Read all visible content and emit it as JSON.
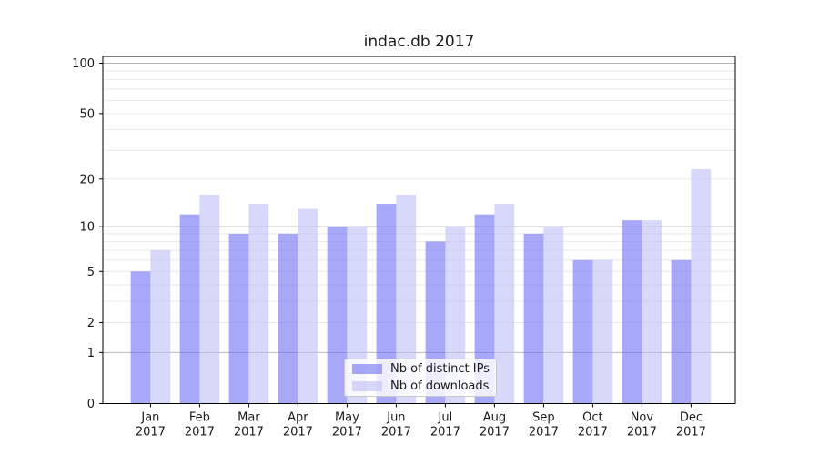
{
  "chart_data": {
    "type": "bar",
    "title": "indac.db 2017",
    "categories": [
      "Jan",
      "Feb",
      "Mar",
      "Apr",
      "May",
      "Jun",
      "Jul",
      "Aug",
      "Sep",
      "Oct",
      "Nov",
      "Dec"
    ],
    "x_tick_second_line": "2017",
    "series": [
      {
        "name": "Nb of distinct IPs",
        "color": "rgba(110,110,245,0.6)",
        "values": [
          5,
          12,
          9,
          9,
          10,
          14,
          8,
          12,
          9,
          6,
          11,
          6
        ]
      },
      {
        "name": "Nb of downloads",
        "color": "rgba(190,190,247,0.6)",
        "values": [
          7,
          16,
          14,
          13,
          10,
          16,
          10,
          14,
          10,
          6,
          11,
          23
        ]
      }
    ],
    "yscale": "symlog",
    "yticks": [
      0,
      1,
      2,
      5,
      10,
      20,
      50,
      100
    ],
    "ylim": [
      0,
      110
    ],
    "grid": {
      "on": true,
      "decade_lines": [
        1,
        10,
        100
      ],
      "decade_line_color": "#b9b9b9",
      "minor_lines": [
        2,
        3,
        4,
        5,
        6,
        7,
        8,
        9,
        20,
        30,
        40,
        50,
        60,
        70,
        80,
        90
      ],
      "minor_line_color": "#e9e9e9"
    },
    "legend": {
      "position": "lower center"
    },
    "axis_color": "#000000",
    "text_color": "#1a1a1a"
  }
}
